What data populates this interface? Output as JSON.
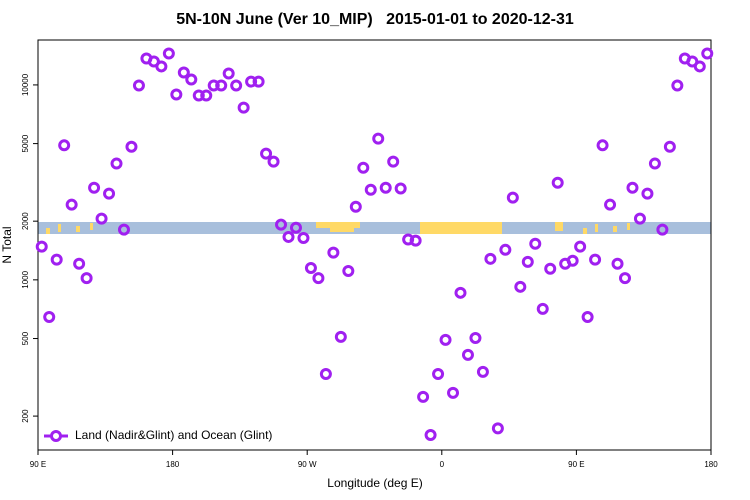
{
  "chart_data": {
    "type": "scatter",
    "title": "5N-10N June (Ver 10_MIP)   2015-01-01 to 2020-12-31",
    "xlabel": "Longitude (deg E)",
    "ylabel": "N Total",
    "xlim": [
      90,
      540
    ],
    "xticks": [
      {
        "value": 90,
        "label": "90 E"
      },
      180,
      {
        "value": 270,
        "label": "90 W"
      },
      {
        "value": 360,
        "label": "0"
      },
      {
        "value": 450,
        "label": "90 E"
      },
      {
        "value": 540,
        "label": "180"
      }
    ],
    "ylim": [
      134,
      17000
    ],
    "yticks": [
      200,
      500,
      1000,
      2000,
      5000,
      10000
    ],
    "log_y": true,
    "legend": "bottom-left",
    "series": [
      {
        "name": "Land (Nadir&Glint) and Ocean (Glint)",
        "color": "#a020f0",
        "x": [
          92.5,
          97.5,
          102.5,
          107.5,
          112.5,
          117.5,
          122.5,
          127.5,
          132.5,
          137.5,
          142.5,
          147.5,
          152.5,
          157.5,
          162.5,
          167.5,
          172.5,
          177.5,
          182.5,
          187.5,
          192.5,
          197.5,
          202.5,
          207.5,
          212.5,
          217.5,
          222.5,
          227.5,
          232.5,
          237.5,
          242.5,
          247.5,
          252.5,
          257.5,
          262.5,
          267.5,
          272.5,
          277.5,
          282.5,
          287.5,
          292.5,
          297.5,
          302.5,
          307.5,
          312.5,
          317.5,
          322.5,
          327.5,
          332.5,
          337.5,
          342.5,
          347.5,
          352.5,
          357.5,
          362.5,
          367.5,
          372.5,
          377.5,
          382.5,
          387.5,
          392.5,
          397.5,
          402.5,
          407.5,
          412.5,
          417.5,
          422.5,
          427.5,
          432.5,
          437.5,
          442.5,
          447.5,
          452.5,
          457.5,
          462.5,
          467.5,
          472.5,
          477.5,
          482.5,
          487.5,
          492.5,
          497.5,
          502.5,
          507.5,
          512.5,
          517.5,
          522.5,
          527.5,
          532.5,
          537.5
        ],
        "values": [
          1480,
          645,
          1270,
          4900,
          2430,
          1210,
          1020,
          2970,
          2060,
          2770,
          3950,
          1810,
          4820,
          9930,
          13670,
          13190,
          12440,
          14500,
          8930,
          11580,
          10660,
          8830,
          8830,
          9930,
          9930,
          11450,
          9930,
          7650,
          10400,
          10400,
          4440,
          4040,
          1920,
          1660,
          1850,
          1640,
          1150,
          1020,
          329,
          1380,
          510,
          1110,
          2370,
          3760,
          2900,
          5300,
          2970,
          4040,
          2940,
          1610,
          1590,
          251,
          160,
          329,
          492,
          263,
          858,
          412,
          503,
          337,
          1282,
          173,
          1426,
          2640,
          921,
          1237,
          1531,
          710,
          1140,
          3150,
          1210,
          1253,
          1480,
          645,
          1270,
          4900,
          2430,
          1210,
          1020,
          2970,
          2060,
          2770,
          3950,
          1810,
          4820,
          9930,
          13670,
          13190,
          12440,
          14500
        ]
      }
    ]
  }
}
